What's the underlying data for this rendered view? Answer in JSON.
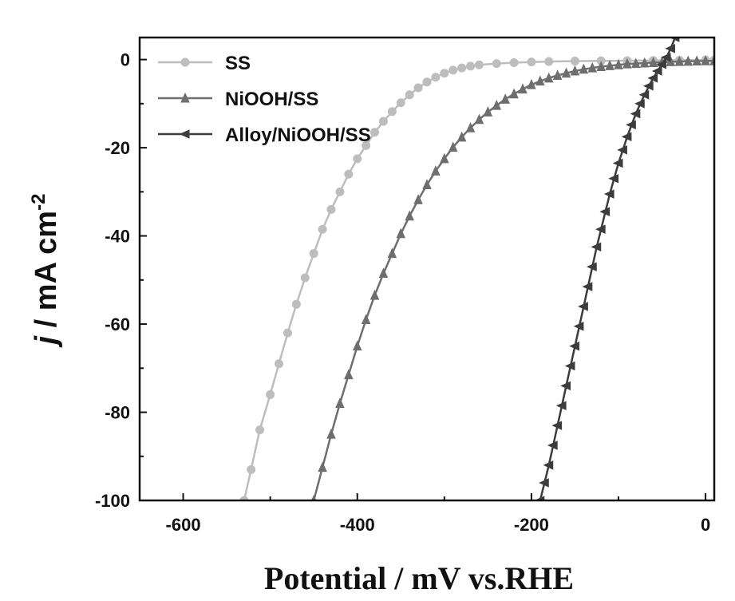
{
  "chart_data": {
    "type": "line",
    "title": "",
    "xlabel": "Potential / mV vs.RHE",
    "ylabel": {
      "italic": "j",
      "text": " / mA cm",
      "superscript": "-2"
    },
    "xlim": [
      -650,
      10
    ],
    "ylim": [
      -100,
      5
    ],
    "xticks": [
      -600,
      -400,
      -200,
      0
    ],
    "xtick_labels": [
      "-600",
      "-400",
      "-200",
      "0"
    ],
    "yticks": [
      0,
      -20,
      -40,
      -60,
      -80,
      -100
    ],
    "ytick_labels": [
      "0",
      "-20",
      "-40",
      "-60",
      "-80",
      "-100"
    ],
    "grid": false,
    "legend_position": "top-left",
    "series": [
      {
        "name": "SS",
        "marker": "circle",
        "color": "#bdbdbd",
        "x": [
          -530,
          -522,
          -512,
          -500,
          -490,
          -480,
          -470,
          -460,
          -450,
          -440,
          -430,
          -420,
          -410,
          -400,
          -390,
          -380,
          -370,
          -360,
          -350,
          -340,
          -330,
          -320,
          -310,
          -300,
          -290,
          -280,
          -270,
          -260,
          -240,
          -220,
          -200,
          -180,
          -150,
          -120,
          -90,
          -60,
          -30,
          0,
          10
        ],
        "y": [
          -100,
          -93,
          -84,
          -76,
          -69,
          -62,
          -55.5,
          -49.5,
          -44,
          -38.5,
          -34,
          -30,
          -26,
          -22.5,
          -19.5,
          -16.5,
          -14,
          -11.8,
          -9.8,
          -8,
          -6.4,
          -5.1,
          -4,
          -3.1,
          -2.4,
          -1.9,
          -1.5,
          -1.2,
          -0.9,
          -0.7,
          -0.55,
          -0.45,
          -0.35,
          -0.3,
          -0.25,
          -0.2,
          -0.15,
          -0.1,
          -0.1
        ]
      },
      {
        "name": "NiOOH/SS",
        "marker": "triangle-up",
        "color": "#6e6e6e",
        "x": [
          -450,
          -440,
          -430,
          -420,
          -410,
          -400,
          -390,
          -380,
          -370,
          -360,
          -350,
          -340,
          -330,
          -320,
          -310,
          -300,
          -290,
          -280,
          -270,
          -260,
          -250,
          -240,
          -230,
          -220,
          -210,
          -200,
          -190,
          -180,
          -170,
          -160,
          -150,
          -140,
          -130,
          -120,
          -110,
          -100,
          -90,
          -80,
          -70,
          -60,
          -50,
          -40,
          -30,
          -20,
          -10,
          0,
          10
        ],
        "y": [
          -100,
          -92.5,
          -85,
          -78,
          -71.5,
          -65,
          -59,
          -53.5,
          -48.5,
          -44,
          -39.5,
          -35.5,
          -31.8,
          -28.4,
          -25.3,
          -22.5,
          -19.9,
          -17.6,
          -15.5,
          -13.6,
          -11.9,
          -10.4,
          -9,
          -7.8,
          -6.7,
          -5.7,
          -4.9,
          -4.2,
          -3.6,
          -3.1,
          -2.6,
          -2.2,
          -1.9,
          -1.6,
          -1.4,
          -1.2,
          -1,
          -0.9,
          -0.8,
          -0.7,
          -0.6,
          -0.5,
          -0.45,
          -0.4,
          -0.35,
          -0.3,
          -0.3
        ]
      },
      {
        "name": "Alloy/NiOOH/SS",
        "marker": "triangle-left",
        "color": "#3c3c3c",
        "x": [
          -190,
          -185,
          -180,
          -175,
          -170,
          -165,
          -160,
          -155,
          -150,
          -145,
          -140,
          -135,
          -130,
          -125,
          -120,
          -115,
          -110,
          -105,
          -100,
          -95,
          -90,
          -85,
          -80,
          -75,
          -70,
          -65,
          -60,
          -55,
          -50,
          -45,
          -40,
          -35
        ],
        "y": [
          -100,
          -96,
          -92,
          -87.5,
          -83,
          -78.5,
          -74,
          -69.5,
          -65,
          -60.5,
          -56,
          -51.5,
          -47,
          -42.5,
          -38.5,
          -34.5,
          -30.5,
          -27,
          -23.5,
          -20.5,
          -17.5,
          -14.8,
          -12.3,
          -10,
          -8,
          -6,
          -4.2,
          -2.6,
          -1.1,
          0.5,
          2.5,
          5
        ]
      }
    ]
  }
}
